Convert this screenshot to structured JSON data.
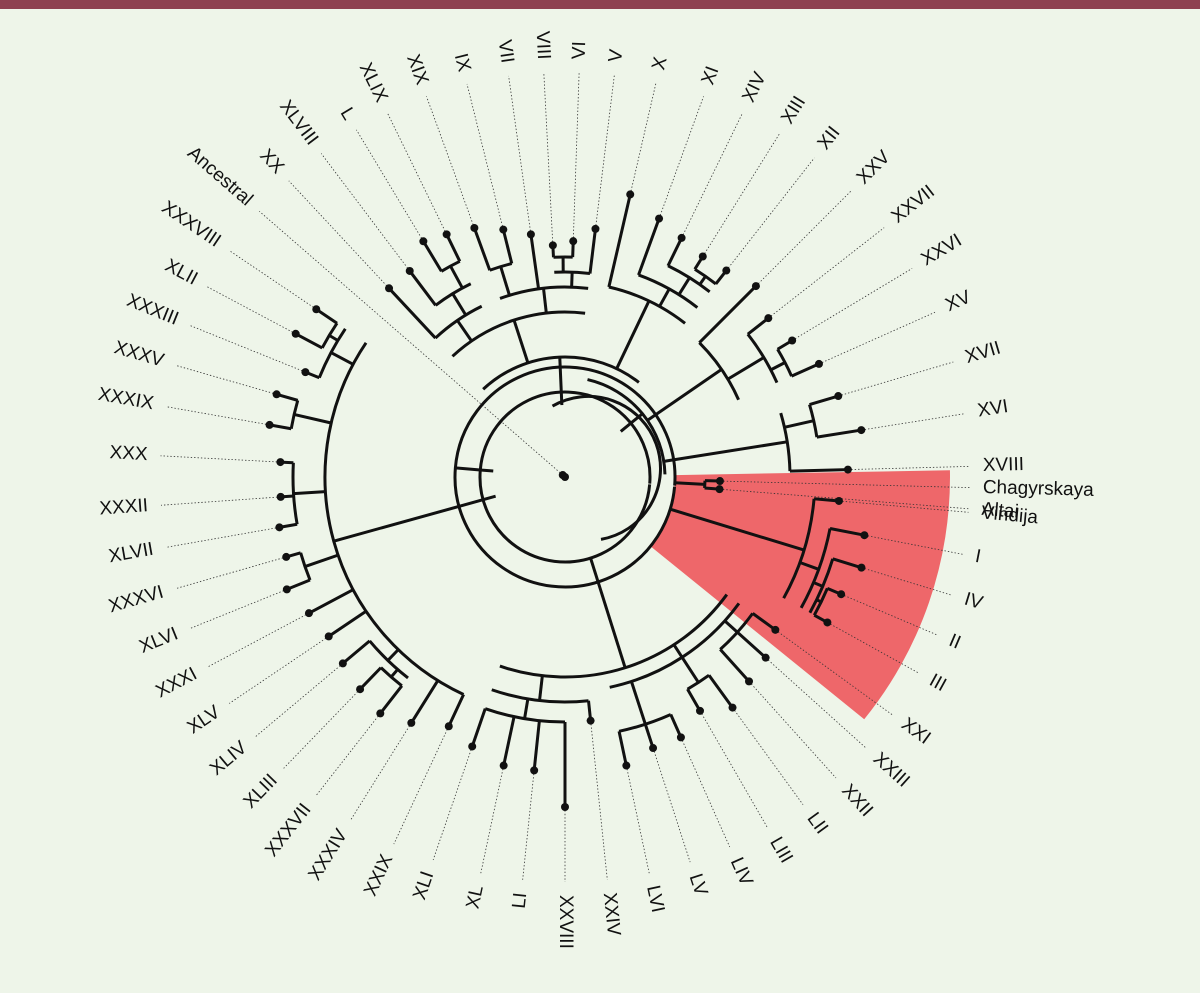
{
  "diagram": {
    "type": "circular-phylogenetic-tree",
    "highlight_color": "#ee5a5e",
    "line_color": "#111111",
    "background": "#eef5e9",
    "accent_bar": "#8e4150",
    "highlighted_clade": [
      "Altai",
      "Chagyrskaya",
      "Vindija",
      "I",
      "IV",
      "II",
      "III"
    ],
    "leaves": [
      {
        "id": "XVIII",
        "label": "XVIII"
      },
      {
        "id": "XVI",
        "label": "XVI"
      },
      {
        "id": "XVII",
        "label": "XVII"
      },
      {
        "id": "XV",
        "label": "XV"
      },
      {
        "id": "XXVI",
        "label": "XXVI"
      },
      {
        "id": "XXVII",
        "label": "XXVII"
      },
      {
        "id": "XXV",
        "label": "XXV"
      },
      {
        "id": "XII",
        "label": "XII"
      },
      {
        "id": "XIII",
        "label": "XIII"
      },
      {
        "id": "XIV",
        "label": "XIV"
      },
      {
        "id": "XI",
        "label": "XI"
      },
      {
        "id": "X",
        "label": "X"
      },
      {
        "id": "V",
        "label": "V"
      },
      {
        "id": "VI",
        "label": "VI"
      },
      {
        "id": "VIII",
        "label": "VIII"
      },
      {
        "id": "VII",
        "label": "VII"
      },
      {
        "id": "IX",
        "label": "IX"
      },
      {
        "id": "XIX",
        "label": "XIX"
      },
      {
        "id": "XLIX",
        "label": "XLIX"
      },
      {
        "id": "L",
        "label": "L"
      },
      {
        "id": "XLVIII",
        "label": "XLVIII"
      },
      {
        "id": "XX",
        "label": "XX"
      },
      {
        "id": "Ancestral",
        "label": "Ancestral"
      },
      {
        "id": "XXXVIII",
        "label": "XXXVIII"
      },
      {
        "id": "XLII",
        "label": "XLII"
      },
      {
        "id": "XXXIII",
        "label": "XXXIII"
      },
      {
        "id": "XXXV",
        "label": "XXXV"
      },
      {
        "id": "XXXIX",
        "label": "XXXIX"
      },
      {
        "id": "XXX",
        "label": "XXX"
      },
      {
        "id": "XXXII",
        "label": "XXXII"
      },
      {
        "id": "XLVII",
        "label": "XLVII"
      },
      {
        "id": "XXXVI",
        "label": "XXXVI"
      },
      {
        "id": "XLVI",
        "label": "XLVI"
      },
      {
        "id": "XXXI",
        "label": "XXXI"
      },
      {
        "id": "XLV",
        "label": "XLV"
      },
      {
        "id": "XLIV",
        "label": "XLIV"
      },
      {
        "id": "XLIII",
        "label": "XLIII"
      },
      {
        "id": "XXXVII",
        "label": "XXXVII"
      },
      {
        "id": "XXXIV",
        "label": "XXXIV"
      },
      {
        "id": "XXIX",
        "label": "XXIX"
      },
      {
        "id": "XLI",
        "label": "XLI"
      },
      {
        "id": "XL",
        "label": "XL"
      },
      {
        "id": "LI",
        "label": "LI"
      },
      {
        "id": "XXVIII",
        "label": "XXVIII"
      },
      {
        "id": "XXIV",
        "label": "XXIV"
      },
      {
        "id": "LVI",
        "label": "LVI"
      },
      {
        "id": "LV",
        "label": "LV"
      },
      {
        "id": "LIV",
        "label": "LIV"
      },
      {
        "id": "LIII",
        "label": "LIII"
      },
      {
        "id": "LII",
        "label": "LII"
      },
      {
        "id": "XXII",
        "label": "XXII"
      },
      {
        "id": "XXIII",
        "label": "XXIII"
      },
      {
        "id": "XXI",
        "label": "XXI"
      },
      {
        "id": "III",
        "label": "III"
      },
      {
        "id": "II",
        "label": "II"
      },
      {
        "id": "IV",
        "label": "IV"
      },
      {
        "id": "I",
        "label": "I"
      },
      {
        "id": "Vindija",
        "label": "Vindija"
      },
      {
        "id": "Chagyrskaya",
        "label": "Chagyrskaya"
      },
      {
        "id": "Altai",
        "label": "Altai"
      }
    ]
  }
}
